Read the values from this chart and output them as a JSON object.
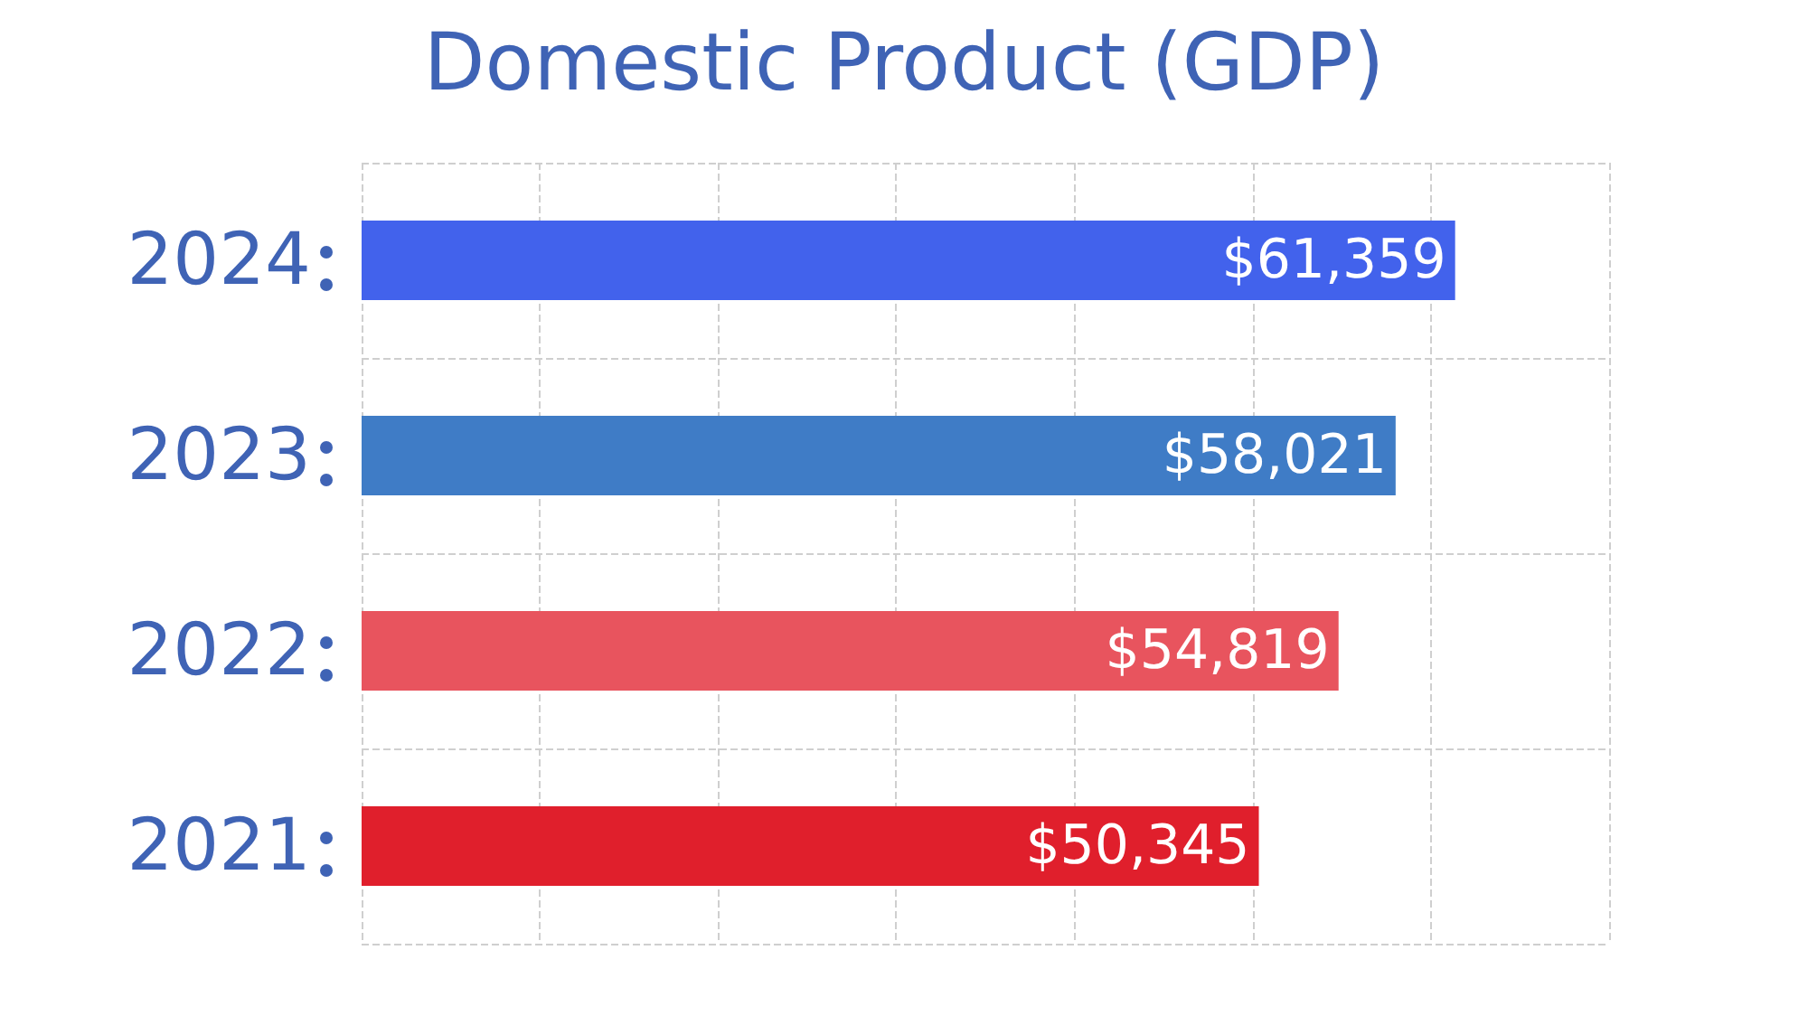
{
  "chart_data": {
    "type": "bar",
    "orientation": "horizontal",
    "title": "Domestic Product (GDP)",
    "categories": [
      "2024",
      "2023",
      "2022",
      "2021"
    ],
    "values": [
      61359,
      58021,
      54819,
      50345
    ],
    "colors": [
      "#4262ec",
      "#3f7cc6",
      "#e8545e",
      "#e01f2c"
    ],
    "value_labels": [
      "$61,359",
      "$58,021",
      "$54,819",
      "$50,345"
    ],
    "grid": true,
    "tick_labels": "y"
  }
}
